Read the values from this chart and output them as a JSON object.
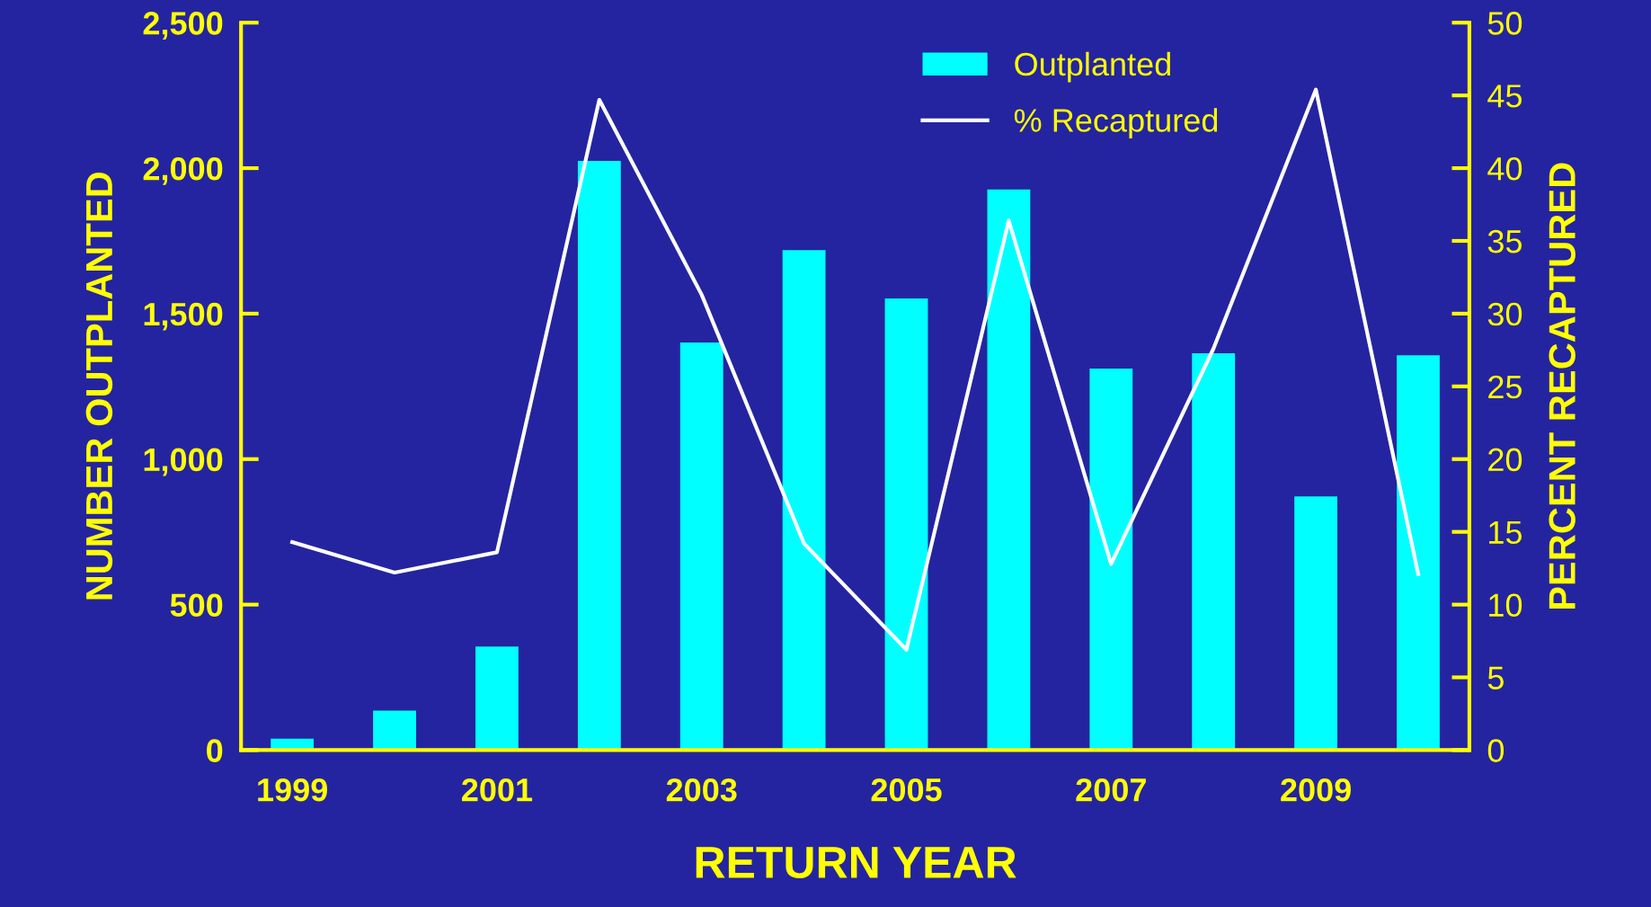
{
  "chart_data": {
    "type": "bar",
    "xlabel": "RETURN YEAR",
    "ylabel": "NUMBER OUTPLANTED",
    "y2label": "PERCENT RECAPTURED",
    "categories": [
      "1999",
      null,
      "2001",
      null,
      "2003",
      null,
      "2005",
      null,
      "2007",
      null,
      "2009",
      null
    ],
    "series": [
      {
        "name": "Outplanted",
        "color": "#00ffff",
        "values": [
          39,
          136,
          356,
          2025,
          1401,
          1718,
          1552,
          1927,
          1311,
          1364,
          872,
          1357
        ]
      },
      {
        "name": "% Recaptured",
        "type": "line",
        "axis": "y2",
        "color": "#ffffff",
        "line_style": "solid",
        "marker": "none",
        "values": [
          14.3,
          12.2,
          13.6,
          44.7,
          31.3,
          14.2,
          6.9,
          36.4,
          12.8,
          27.6,
          45.4,
          12.1
        ]
      }
    ],
    "ylim": [
      0,
      2500
    ],
    "yticks": [
      0,
      {
        "value": 500,
        "label": "500"
      },
      {
        "value": 1000,
        "label": "1,000"
      },
      {
        "value": 1500,
        "label": "1,500"
      },
      {
        "value": 2000,
        "label": "2,000"
      },
      {
        "value": 2500,
        "label": "2,500"
      }
    ],
    "y2lim": [
      0,
      50
    ],
    "y2ticks": [
      0,
      5,
      10,
      15,
      20,
      25,
      30,
      35,
      40,
      45,
      50
    ],
    "grid": false,
    "legend": "top right"
  }
}
